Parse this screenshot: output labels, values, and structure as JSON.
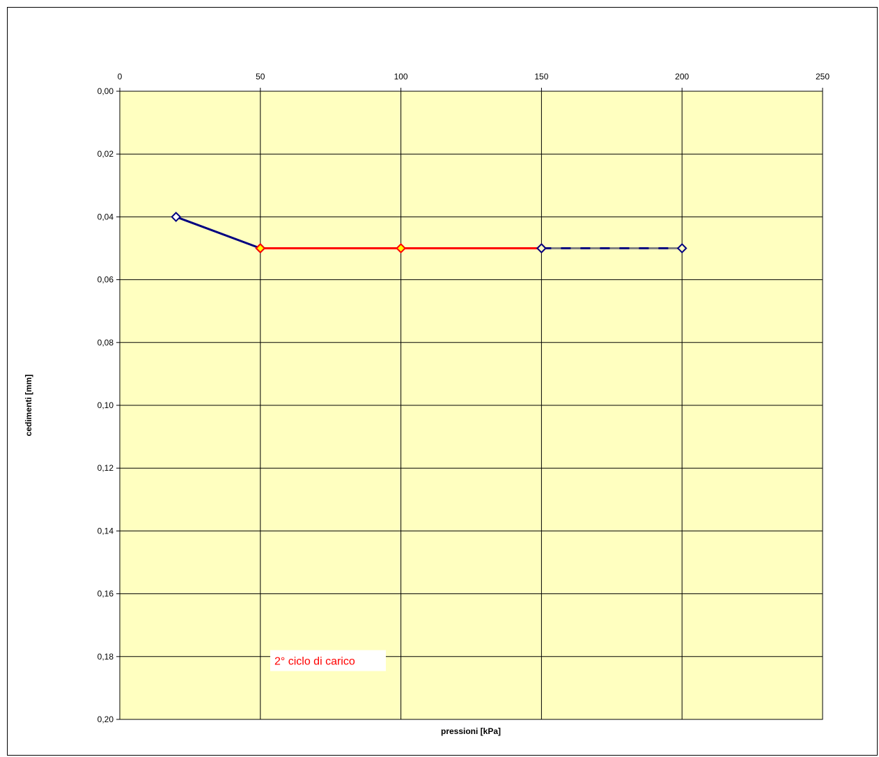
{
  "chart_data": {
    "type": "line",
    "xlabel": "pressioni [kPa]",
    "ylabel": "cedimenti [mm]",
    "xlim": [
      0,
      250
    ],
    "ylim": [
      0.0,
      0.2
    ],
    "y_inverted": true,
    "x_axis_position": "top",
    "x_ticks": [
      "0",
      "50",
      "100",
      "150",
      "200",
      "250"
    ],
    "y_ticks": [
      "0,00",
      "0,02",
      "0,04",
      "0,06",
      "0,08",
      "0,10",
      "0,12",
      "0,14",
      "0,16",
      "0,18",
      "0,20"
    ],
    "grid": true,
    "plot_background": "#ffffc0",
    "series": [
      {
        "style": "solid",
        "color": "#000080",
        "marker": "diamond",
        "marker_fill": "#ffffff",
        "x": [
          20,
          50
        ],
        "y": [
          0.04,
          0.05
        ]
      },
      {
        "style": "solid",
        "color": "#ff0000",
        "marker": "diamond",
        "marker_fill": "#ffff00",
        "x": [
          50,
          100,
          150
        ],
        "y": [
          0.05,
          0.05,
          0.05
        ]
      },
      {
        "style": "dashed",
        "color": "#000080",
        "dash_alt_color": "#808080",
        "marker": "diamond",
        "marker_fill": "#ffffc0",
        "x": [
          150,
          200
        ],
        "y": [
          0.05,
          0.05
        ]
      }
    ],
    "annotations": [
      {
        "text": "2° ciclo di  carico",
        "x": 55,
        "y": 0.1815,
        "color": "#ff0000"
      }
    ]
  }
}
